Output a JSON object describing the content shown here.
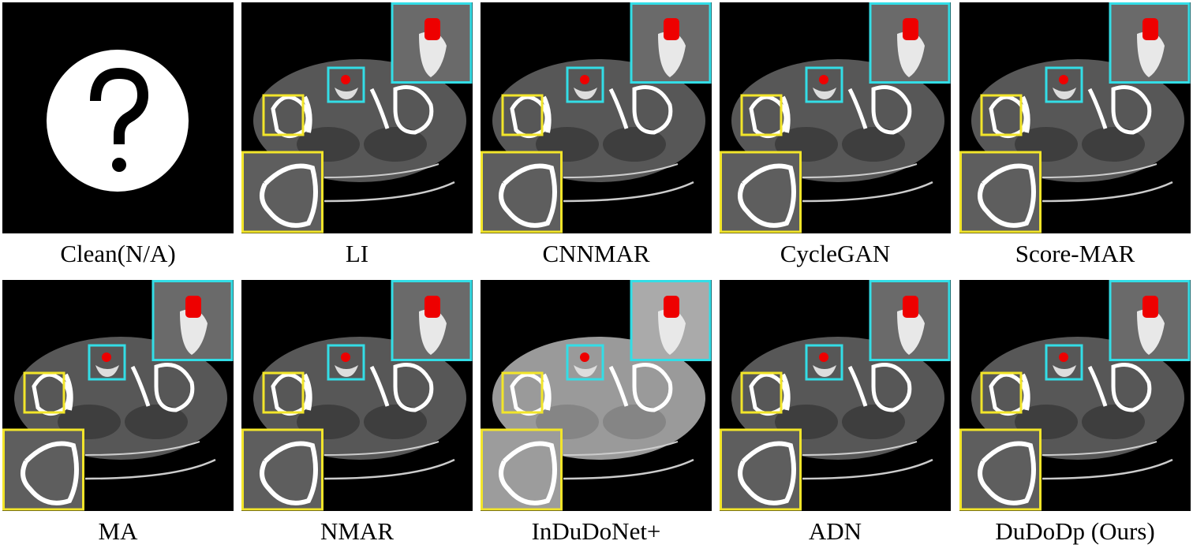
{
  "panels": [
    {
      "label": "Clean(N/A)"
    },
    {
      "label": "LI"
    },
    {
      "label": "CNNMAR"
    },
    {
      "label": "CycleGAN"
    },
    {
      "label": "Score-MAR"
    },
    {
      "label": "MA"
    },
    {
      "label": "NMAR"
    },
    {
      "label": "InDuDoNet+"
    },
    {
      "label": "ADN"
    },
    {
      "label": "DuDoDp (Ours)"
    }
  ]
}
